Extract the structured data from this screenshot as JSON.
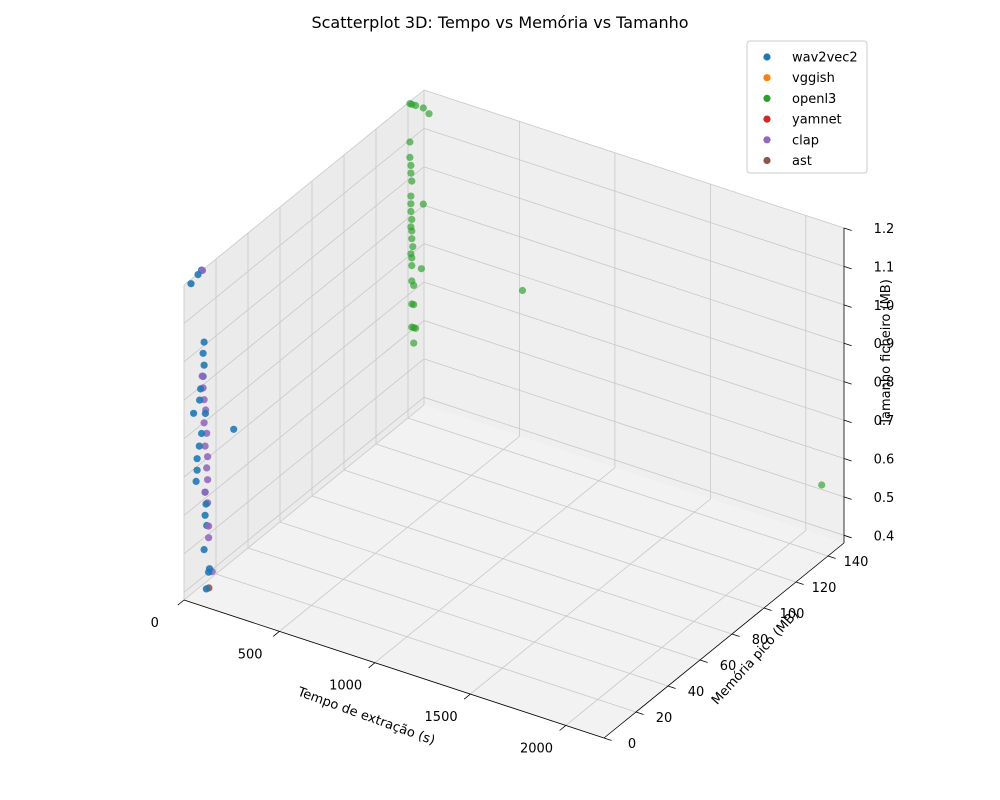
{
  "chart_data": {
    "type": "scatter",
    "projection": "3d",
    "title": "Scatterplot 3D: Tempo vs Memória vs Tamanho",
    "xlabel": "Tempo de extração (s)",
    "ylabel": "Memória pico (MB)",
    "zlabel": "Tamanho ficheiro (MB)",
    "xlim": [
      0,
      2200
    ],
    "ylim": [
      0,
      150
    ],
    "zlim": [
      0.38,
      1.2
    ],
    "xticks": [
      "0",
      "500",
      "1000",
      "1500",
      "2000"
    ],
    "yticks": [
      "0",
      "20",
      "40",
      "60",
      "80",
      "100",
      "120",
      "140"
    ],
    "zticks": [
      "0.4",
      "0.5",
      "0.6",
      "0.7",
      "0.8",
      "0.9",
      "1.0",
      "1.1",
      "1.2"
    ],
    "grid": true,
    "legend_position": "top-right",
    "series": [
      {
        "name": "wav2vec2",
        "color": "#1f77b4",
        "points": [
          [
            20,
            2,
            1.2
          ],
          [
            40,
            4,
            1.22
          ],
          [
            50,
            5,
            1.23
          ],
          [
            25,
            3,
            0.86
          ],
          [
            70,
            5,
            0.86
          ],
          [
            30,
            4,
            0.68
          ],
          [
            35,
            4,
            0.71
          ],
          [
            35,
            4,
            0.74
          ],
          [
            38,
            5,
            0.77
          ],
          [
            42,
            6,
            0.8
          ],
          [
            40,
            5,
            0.89
          ],
          [
            45,
            5,
            0.92
          ],
          [
            50,
            6,
            0.95
          ],
          [
            55,
            6,
            0.98
          ],
          [
            50,
            6,
            1.01
          ],
          [
            55,
            6,
            1.04
          ],
          [
            55,
            6,
            0.5
          ],
          [
            60,
            7,
            0.56
          ],
          [
            60,
            6,
            0.59
          ],
          [
            65,
            6,
            0.62
          ],
          [
            60,
            6,
            0.65
          ],
          [
            70,
            7,
            0.44
          ],
          [
            75,
            7,
            0.45
          ],
          [
            50,
            8,
            0.39
          ],
          [
            160,
            12,
            0.81
          ]
        ]
      },
      {
        "name": "vggish",
        "color": "#ff7f0e",
        "points": []
      },
      {
        "name": "openl3",
        "color": "#2ca02c",
        "points": [
          [
            10,
            140,
            1.2
          ],
          [
            20,
            140,
            1.2
          ],
          [
            40,
            140,
            1.2
          ],
          [
            80,
            140,
            1.2
          ],
          [
            110,
            140,
            1.19
          ],
          [
            10,
            140,
            1.1
          ],
          [
            10,
            140,
            1.06
          ],
          [
            15,
            140,
            1.04
          ],
          [
            15,
            140,
            1.02
          ],
          [
            20,
            140,
            1.0
          ],
          [
            15,
            140,
            0.96
          ],
          [
            15,
            140,
            0.94
          ],
          [
            80,
            140,
            0.95
          ],
          [
            15,
            140,
            0.92
          ],
          [
            20,
            140,
            0.9
          ],
          [
            15,
            140,
            0.88
          ],
          [
            20,
            140,
            0.87
          ],
          [
            20,
            140,
            0.85
          ],
          [
            25,
            140,
            0.83
          ],
          [
            15,
            140,
            0.81
          ],
          [
            20,
            140,
            0.8
          ],
          [
            20,
            140,
            0.78
          ],
          [
            70,
            140,
            0.78
          ],
          [
            20,
            140,
            0.74
          ],
          [
            30,
            140,
            0.73
          ],
          [
            20,
            140,
            0.68
          ],
          [
            30,
            140,
            0.68
          ],
          [
            20,
            140,
            0.62
          ],
          [
            30,
            140,
            0.62
          ],
          [
            40,
            140,
            0.62
          ],
          [
            30,
            140,
            0.58
          ],
          [
            600,
            140,
            0.81
          ],
          [
            2150,
            142,
            0.55
          ]
        ]
      },
      {
        "name": "yamnet",
        "color": "#d62728",
        "points": []
      },
      {
        "name": "clap",
        "color": "#9467bd",
        "points": [
          [
            55,
            5,
            1.23
          ],
          [
            45,
            6,
            0.95
          ],
          [
            50,
            6,
            0.92
          ],
          [
            55,
            6,
            0.89
          ],
          [
            55,
            7,
            0.86
          ],
          [
            55,
            6,
            0.83
          ],
          [
            60,
            7,
            0.8
          ],
          [
            60,
            6,
            0.77
          ],
          [
            65,
            7,
            0.74
          ],
          [
            60,
            7,
            0.71
          ],
          [
            65,
            7,
            0.68
          ],
          [
            60,
            6,
            0.65
          ],
          [
            65,
            7,
            0.62
          ],
          [
            70,
            7,
            0.56
          ],
          [
            70,
            7,
            0.53
          ],
          [
            80,
            8,
            0.44
          ]
        ]
      },
      {
        "name": "ast",
        "color": "#8c564b",
        "points": [
          [
            55,
            9,
            0.39
          ]
        ]
      }
    ]
  }
}
